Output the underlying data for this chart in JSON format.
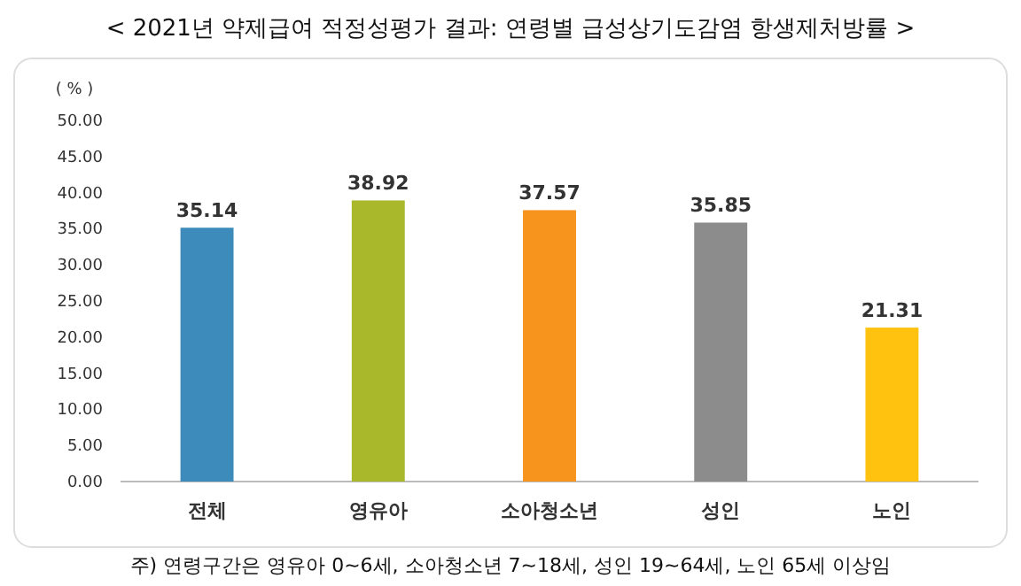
{
  "chart_data": {
    "type": "bar",
    "title": "< 2021년 약제급여 적정성평가 결과: 연령별 급성상기도감염 항생제처방률 >",
    "ylabel": "( % )",
    "categories": [
      "전체",
      "영유아",
      "소아청소년",
      "성인",
      "노인"
    ],
    "values": [
      35.14,
      38.92,
      37.57,
      35.85,
      21.31
    ],
    "colors": [
      "#3d8bbb",
      "#a8b82a",
      "#f7941d",
      "#8c8c8c",
      "#ffc20e"
    ],
    "ylim": [
      0,
      50
    ],
    "yticks": [
      {
        "value": 0,
        "label": "0.00"
      },
      {
        "value": 5,
        "label": "5.00"
      },
      {
        "value": 10,
        "label": "10.00"
      },
      {
        "value": 15,
        "label": "15.00"
      },
      {
        "value": 20,
        "label": "20.00"
      },
      {
        "value": 25,
        "label": "25.00"
      },
      {
        "value": 30,
        "label": "30.00"
      },
      {
        "value": 35,
        "label": "35.00"
      },
      {
        "value": 40,
        "label": "40.00"
      },
      {
        "value": 45,
        "label": "45.00"
      },
      {
        "value": 50,
        "label": "50.00"
      }
    ],
    "data_labels": true,
    "annotations": [
      "주) 연령구간은 영유아 0~6세, 소아청소년 7~18세, 성인 19~64세, 노인 65세 이상임"
    ]
  }
}
